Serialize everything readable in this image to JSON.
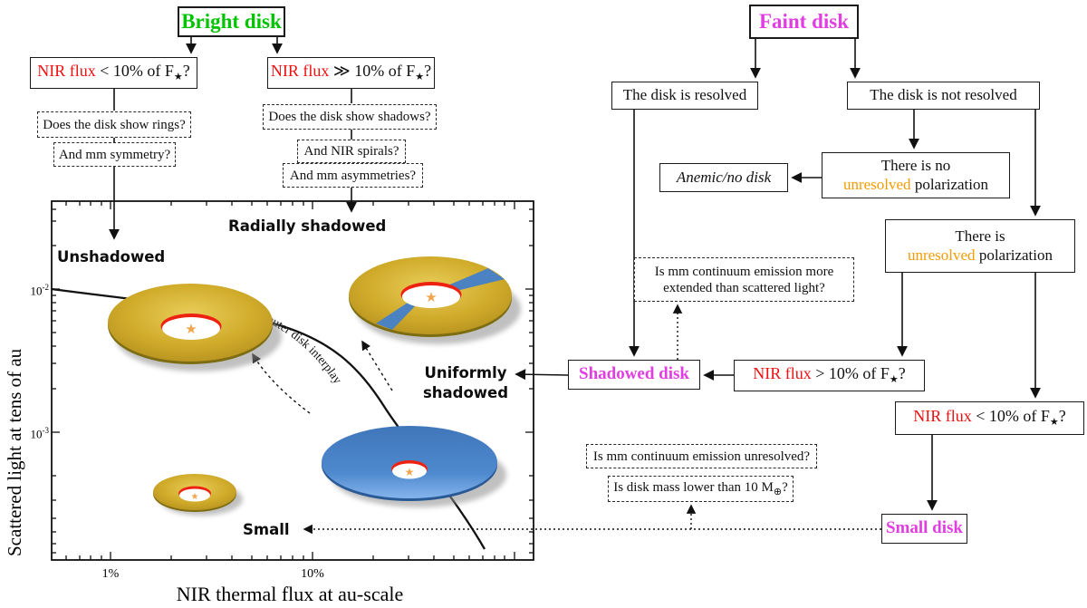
{
  "colors": {
    "bright_green": "#00c400",
    "faint_magenta": "#e13ee1",
    "nir_red": "#ee1111",
    "unresolved_orange": "#f59b00",
    "disk_gold": "#d1ac2b",
    "disk_blue": "#4c87cc",
    "rim_red": "#ee2211",
    "star_orange": "#f0a44c"
  },
  "flowchart": {
    "bright_disk": "Bright disk",
    "faint_disk": "Faint disk",
    "nir_lt_left": {
      "red": "NIR flux",
      "mid": " < 10% of F",
      "star": "★",
      "suffix": "?"
    },
    "nir_gg": {
      "red": "NIR flux",
      "mid": " ≫ 10% of F",
      "star": "★",
      "suffix": "?"
    },
    "nir_gt": {
      "red": "NIR flux",
      "mid": " > 10% of F",
      "star": "★",
      "suffix": "?"
    },
    "nir_lt_right": {
      "red": "NIR flux",
      "mid": " < 10% of F",
      "star": "★",
      "suffix": "?"
    },
    "rings": "Does the disk show rings?",
    "symmetry": "And mm symmetry?",
    "shadows": "Does the disk show shadows?",
    "spirals": "And NIR spirals?",
    "asymmetries": "And mm asymmetries?",
    "resolved": "The disk is resolved",
    "not_resolved": "The disk is not resolved",
    "anemic": "Anemic/no disk",
    "no_unres": {
      "line1": "There is no",
      "orange": "unresolved",
      "rest": " polarization"
    },
    "unres": {
      "line1": "There is",
      "orange": "unresolved",
      "rest": " polarization"
    },
    "mm_extended": {
      "line1": "Is mm continuum emission more",
      "line2": "extended than scattered light?"
    },
    "shadowed_disk": "Shadowed disk",
    "mm_unresolved": "Is mm continuum emission unresolved?",
    "disk_mass": {
      "pre": "Is disk mass lower than 10 M",
      "sub": "⊕",
      "post": "?"
    },
    "small_disk": "Small disk"
  },
  "plot": {
    "ylabel": "Scattered light at tens of au",
    "xlabel": "NIR thermal flux at au-scale",
    "yticks": [
      {
        "base": "10",
        "exp": "-2"
      },
      {
        "base": "10",
        "exp": "-3"
      }
    ],
    "xticks": [
      "1%",
      "10%"
    ],
    "labels": {
      "unshadowed": "Unshadowed",
      "radially": "Radially shadowed",
      "uniformly1": "Uniformly",
      "uniformly2": "shadowed",
      "small": "Small"
    },
    "curve_label": "Inner/outer disk interplay",
    "star_glyph": "★"
  }
}
